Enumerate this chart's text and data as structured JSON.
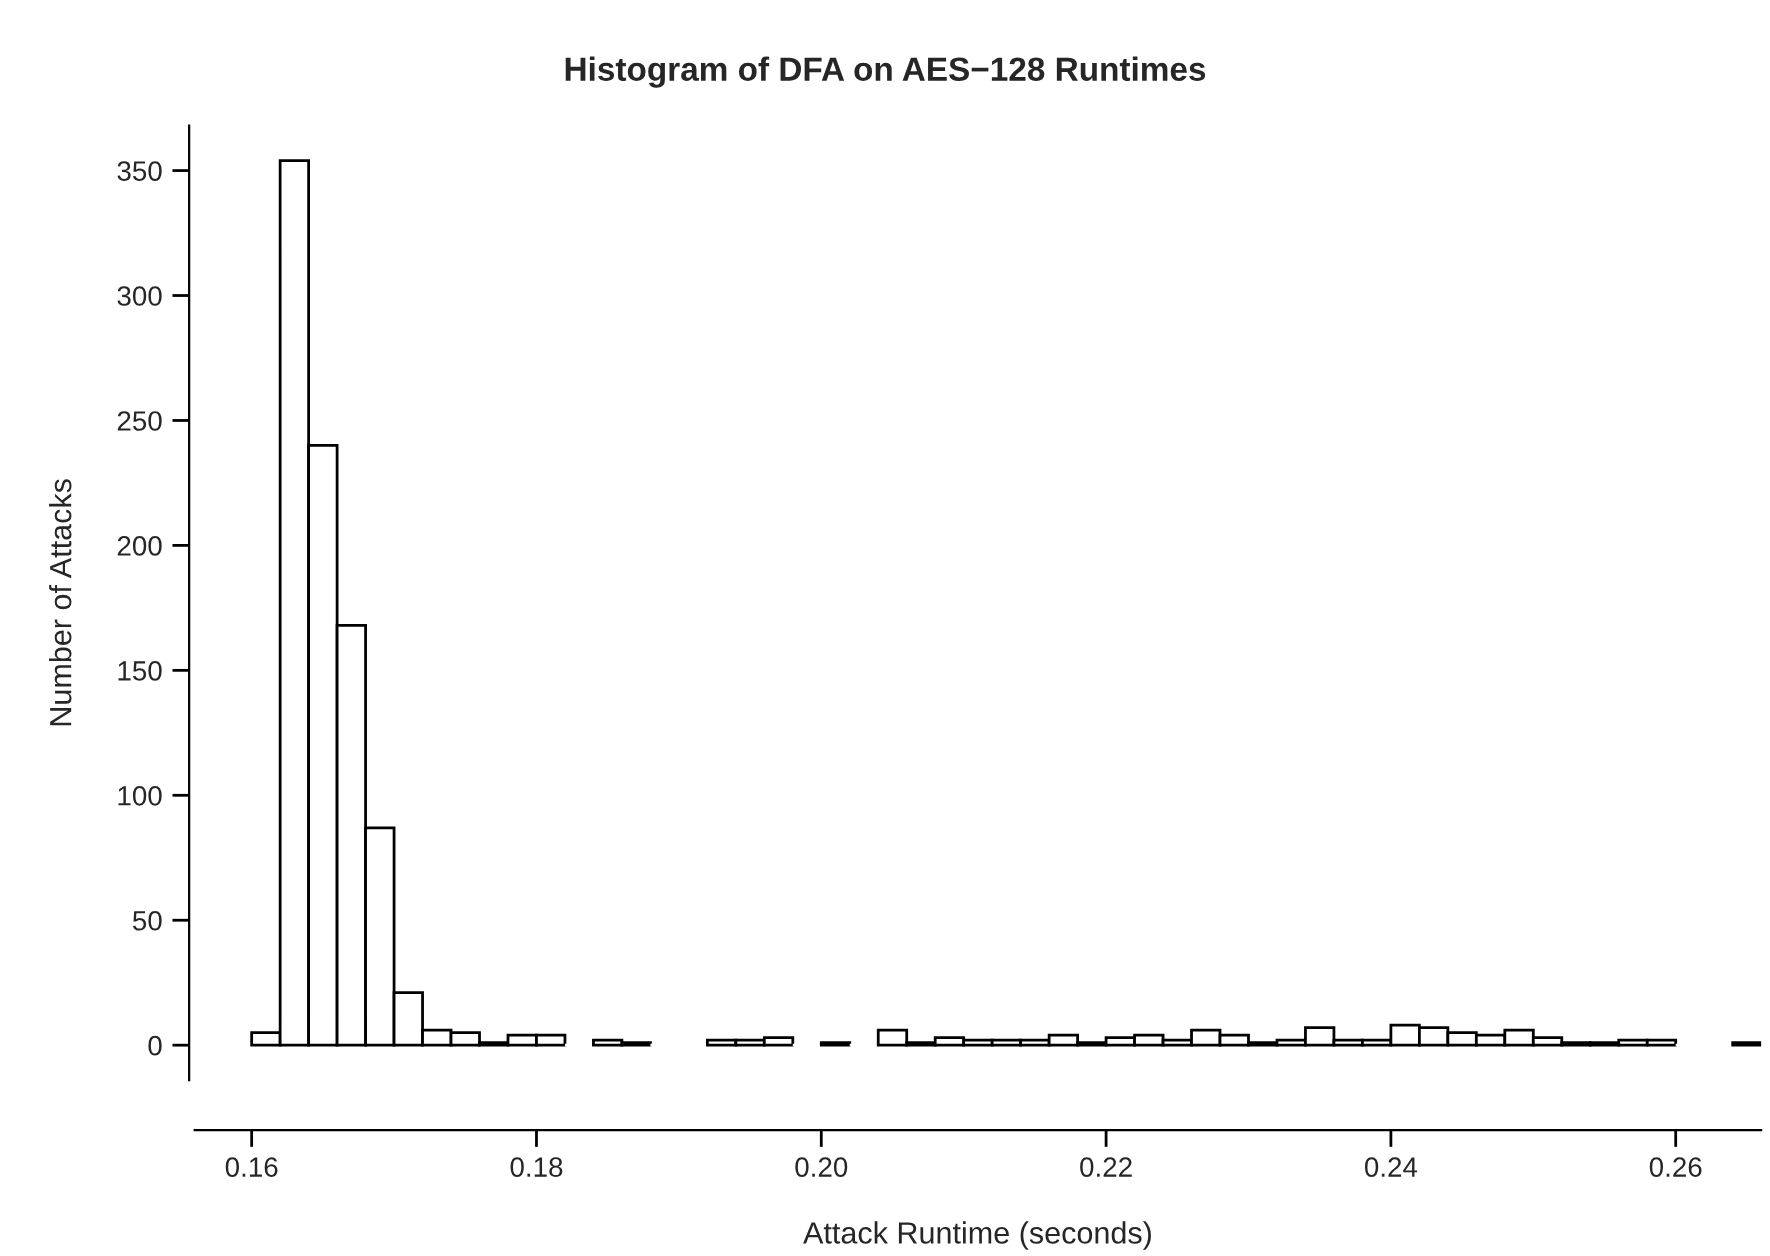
{
  "chart_data": {
    "type": "histogram",
    "title": "Histogram of DFA on AES−128 Runtimes",
    "xlabel": "Attack Runtime (seconds)",
    "ylabel": "Number of Attacks",
    "bins": [
      0.16,
      0.162,
      0.164,
      0.166,
      0.168,
      0.17,
      0.172,
      0.174,
      0.176,
      0.178,
      0.18,
      0.182,
      0.184,
      0.186,
      0.188,
      0.19,
      0.192,
      0.194,
      0.196,
      0.198,
      0.2,
      0.202,
      0.204,
      0.206,
      0.208,
      0.21,
      0.212,
      0.214,
      0.216,
      0.218,
      0.22,
      0.222,
      0.224,
      0.226,
      0.228,
      0.23,
      0.232,
      0.234,
      0.236,
      0.238,
      0.24,
      0.242,
      0.244,
      0.246,
      0.248,
      0.25,
      0.252,
      0.254,
      0.256,
      0.258,
      0.26,
      0.262,
      0.264,
      0.266
    ],
    "values": [
      5,
      354,
      240,
      168,
      87,
      21,
      6,
      5,
      1,
      4,
      4,
      0,
      2,
      1,
      0,
      0,
      2,
      2,
      3,
      0,
      1,
      0,
      6,
      1,
      3,
      2,
      2,
      2,
      4,
      1,
      3,
      4,
      2,
      6,
      4,
      1,
      2,
      7,
      2,
      2,
      8,
      7,
      5,
      4,
      6,
      3,
      1,
      1,
      2,
      2,
      0,
      0,
      1
    ],
    "color": "#ffffff",
    "xlim": [
      0.156,
      0.266
    ],
    "ylim": [
      -14,
      368
    ],
    "xticks": [
      {
        "value": 0.16,
        "label": "0.16"
      },
      {
        "value": 0.18,
        "label": "0.18"
      },
      {
        "value": 0.2,
        "label": "0.20"
      },
      {
        "value": 0.22,
        "label": "0.22"
      },
      {
        "value": 0.24,
        "label": "0.24"
      },
      {
        "value": 0.26,
        "label": "0.26"
      }
    ],
    "yticks": [
      0,
      50,
      100,
      150,
      200,
      250,
      300,
      350
    ],
    "grid": false,
    "legend": false
  }
}
